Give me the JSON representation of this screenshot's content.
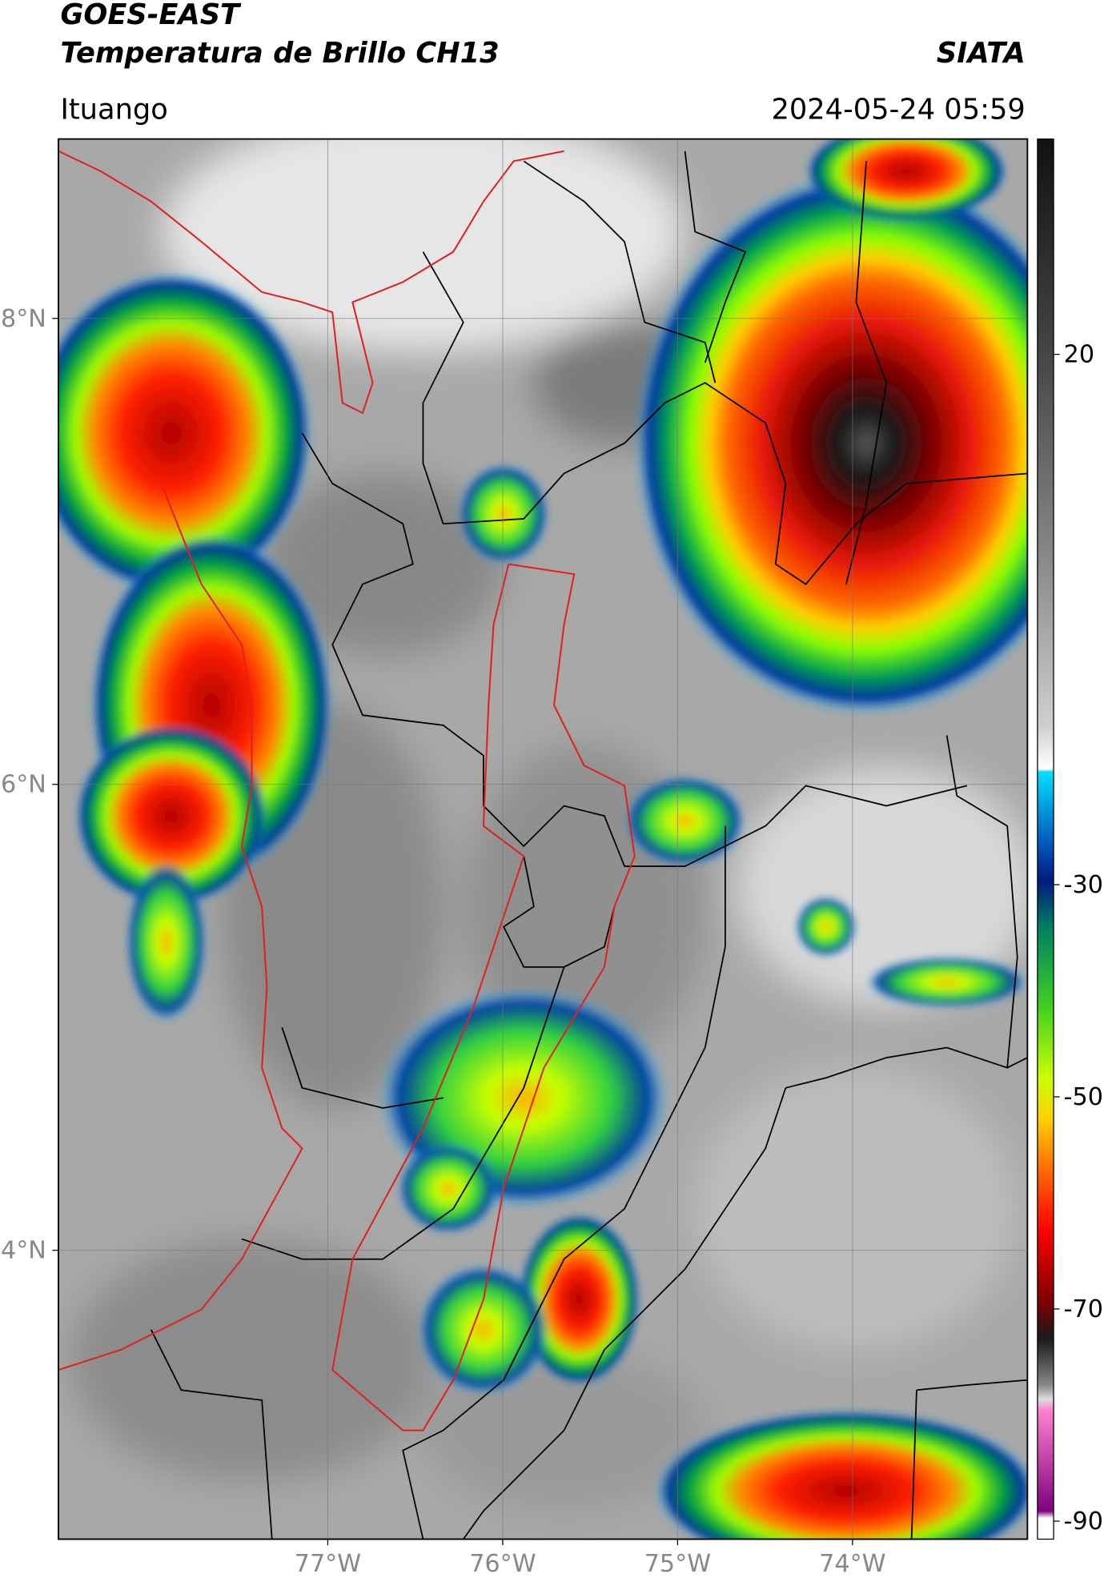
{
  "header": {
    "title": "GOES-EAST",
    "subtitle": "Temperatura de Brillo CH13",
    "source": "SIATA",
    "location": "Ituango",
    "datetime": "2024-05-24 05:59"
  },
  "map": {
    "xlim": [
      -78.54,
      -73.0
    ],
    "ylim": [
      2.76,
      8.77
    ],
    "grid": true,
    "xticks": [
      {
        "value": -77,
        "label": "77°W"
      },
      {
        "value": -76,
        "label": "76°W"
      },
      {
        "value": -75,
        "label": "75°W"
      },
      {
        "value": -74,
        "label": "74°W"
      }
    ],
    "yticks": [
      {
        "value": 8,
        "label": "8°N"
      },
      {
        "value": 6,
        "label": "6°N"
      },
      {
        "value": 4,
        "label": "4°N"
      }
    ]
  },
  "colorbar": {
    "lim": [
      -91.7,
      40.3
    ],
    "ticks": [
      20,
      -30,
      -50,
      -70,
      -90
    ]
  }
}
